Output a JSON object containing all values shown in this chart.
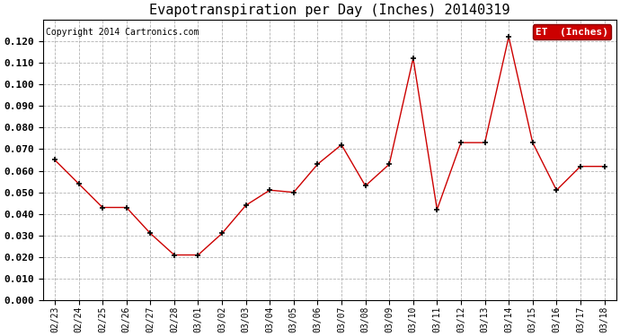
{
  "title": "Evapotranspiration per Day (Inches) 20140319",
  "copyright": "Copyright 2014 Cartronics.com",
  "legend_label": "ET  (Inches)",
  "dates": [
    "02/23",
    "02/24",
    "02/25",
    "02/26",
    "02/27",
    "02/28",
    "03/01",
    "03/02",
    "03/03",
    "03/04",
    "03/05",
    "03/06",
    "03/07",
    "03/08",
    "03/09",
    "03/10",
    "03/11",
    "03/12",
    "03/13",
    "03/14",
    "03/15",
    "03/16",
    "03/17",
    "03/18"
  ],
  "values": [
    0.065,
    0.054,
    0.043,
    0.043,
    0.031,
    0.021,
    0.021,
    0.031,
    0.044,
    0.051,
    0.05,
    0.063,
    0.072,
    0.053,
    0.063,
    0.112,
    0.042,
    0.073,
    0.073,
    0.122,
    0.073,
    0.051,
    0.062,
    0.062
  ],
  "line_color": "#cc0000",
  "marker": "+",
  "marker_color": "#000000",
  "ylim": [
    0.0,
    0.13
  ],
  "yticks": [
    0.0,
    0.01,
    0.02,
    0.03,
    0.04,
    0.05,
    0.06,
    0.07,
    0.08,
    0.09,
    0.1,
    0.11,
    0.12
  ],
  "background_color": "#ffffff",
  "grid_color": "#aaaaaa",
  "legend_bg": "#cc0000",
  "legend_text_color": "#ffffff",
  "title_fontsize": 11,
  "copyright_fontsize": 7,
  "tick_fontsize": 7,
  "ytick_fontsize": 8,
  "legend_fontsize": 8
}
